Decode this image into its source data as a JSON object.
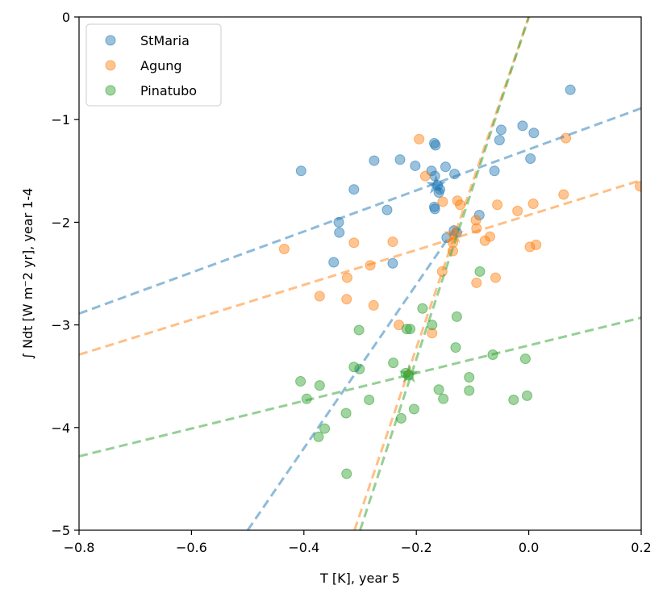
{
  "chart_data": {
    "type": "scatter",
    "xlabel": "T [K], year 5",
    "ylabel": "∫ Ndt [W m⁻2 yr], year 1-4",
    "xlim": [
      -0.8,
      0.2
    ],
    "ylim": [
      -5,
      0
    ],
    "xticks": [
      -0.8,
      -0.6,
      -0.4,
      -0.2,
      0.0,
      0.2
    ],
    "xtick_labels": [
      "−0.8",
      "−0.6",
      "−0.4",
      "−0.2",
      "0.0",
      "0.2"
    ],
    "yticks": [
      0,
      -1,
      -2,
      -3,
      -4,
      -5
    ],
    "ytick_labels": [
      "0",
      "−1",
      "−2",
      "−3",
      "−4",
      "−5"
    ],
    "grid": false,
    "legend_position": "top-left",
    "series": [
      {
        "name": "StMaria",
        "color": "#1f77b4",
        "points": [
          [
            0.074,
            -0.71
          ],
          [
            -0.405,
            -1.5
          ],
          [
            -0.311,
            -1.68
          ],
          [
            -0.275,
            -1.4
          ],
          [
            -0.229,
            -1.39
          ],
          [
            -0.202,
            -1.45
          ],
          [
            -0.148,
            -1.46
          ],
          [
            -0.173,
            -1.5
          ],
          [
            -0.168,
            -1.23
          ],
          [
            -0.166,
            -1.25
          ],
          [
            -0.167,
            -1.55
          ],
          [
            -0.162,
            -1.64
          ],
          [
            -0.158,
            -1.68
          ],
          [
            -0.16,
            -1.71
          ],
          [
            -0.132,
            -1.53
          ],
          [
            -0.168,
            -1.85
          ],
          [
            -0.167,
            -1.87
          ],
          [
            -0.088,
            -1.93
          ],
          [
            -0.011,
            -1.06
          ],
          [
            0.009,
            -1.13
          ],
          [
            -0.049,
            -1.1
          ],
          [
            -0.052,
            -1.2
          ],
          [
            0.003,
            -1.38
          ],
          [
            -0.061,
            -1.5
          ],
          [
            -0.252,
            -1.88
          ],
          [
            -0.338,
            -2.0
          ],
          [
            -0.337,
            -2.1
          ],
          [
            -0.347,
            -2.39
          ],
          [
            -0.242,
            -2.4
          ],
          [
            -0.146,
            -2.15
          ],
          [
            -0.133,
            -2.08
          ],
          [
            -0.128,
            -2.1
          ]
        ],
        "fit_line": {
          "x": [
            -0.8,
            0.2
          ],
          "y": [
            -2.89,
            -0.89
          ]
        },
        "steep_line": {
          "x": [
            -0.5,
            -0.134
          ],
          "y": [
            -5.0,
            -2.08
          ]
        },
        "mean_marker": [
          -0.165,
          -1.64
        ]
      },
      {
        "name": "Agung",
        "color": "#ff7f0e",
        "points": [
          [
            -0.195,
            -1.19
          ],
          [
            -0.184,
            -1.55
          ],
          [
            -0.153,
            -1.8
          ],
          [
            -0.127,
            -1.79
          ],
          [
            -0.122,
            -1.83
          ],
          [
            -0.094,
            -1.98
          ],
          [
            -0.093,
            -2.06
          ],
          [
            -0.078,
            -2.18
          ],
          [
            -0.069,
            -2.14
          ],
          [
            -0.056,
            -1.83
          ],
          [
            -0.02,
            -1.89
          ],
          [
            0.008,
            -1.82
          ],
          [
            0.013,
            -2.22
          ],
          [
            0.002,
            -2.24
          ],
          [
            0.066,
            -1.18
          ],
          [
            0.062,
            -1.73
          ],
          [
            0.198,
            -1.65
          ],
          [
            -0.435,
            -2.26
          ],
          [
            -0.311,
            -2.2
          ],
          [
            -0.242,
            -2.19
          ],
          [
            -0.282,
            -2.42
          ],
          [
            -0.323,
            -2.54
          ],
          [
            -0.372,
            -2.72
          ],
          [
            -0.324,
            -2.75
          ],
          [
            -0.276,
            -2.81
          ],
          [
            -0.154,
            -2.48
          ],
          [
            -0.135,
            -2.2
          ],
          [
            -0.135,
            -2.28
          ],
          [
            -0.093,
            -2.59
          ],
          [
            -0.059,
            -2.54
          ],
          [
            -0.231,
            -3.0
          ],
          [
            -0.172,
            -3.08
          ]
        ],
        "fit_line": {
          "x": [
            -0.8,
            0.2
          ],
          "y": [
            -3.29,
            -1.59
          ]
        },
        "steep_line": {
          "x": [
            -0.31,
            0.0
          ],
          "y": [
            -5.0,
            0.0
          ]
        },
        "mean_marker": [
          -0.133,
          -2.12
        ]
      },
      {
        "name": "Pinatubo",
        "color": "#2ca02c",
        "points": [
          [
            -0.087,
            -2.48
          ],
          [
            -0.189,
            -2.84
          ],
          [
            -0.128,
            -2.92
          ],
          [
            -0.217,
            -3.04
          ],
          [
            -0.211,
            -3.04
          ],
          [
            -0.172,
            -3.0
          ],
          [
            -0.302,
            -3.05
          ],
          [
            -0.13,
            -3.22
          ],
          [
            -0.064,
            -3.29
          ],
          [
            -0.006,
            -3.33
          ],
          [
            -0.311,
            -3.41
          ],
          [
            -0.301,
            -3.43
          ],
          [
            -0.241,
            -3.37
          ],
          [
            -0.406,
            -3.55
          ],
          [
            -0.372,
            -3.59
          ],
          [
            -0.395,
            -3.72
          ],
          [
            -0.284,
            -3.73
          ],
          [
            -0.219,
            -3.47
          ],
          [
            -0.214,
            -3.49
          ],
          [
            -0.16,
            -3.63
          ],
          [
            -0.152,
            -3.72
          ],
          [
            -0.106,
            -3.51
          ],
          [
            -0.106,
            -3.64
          ],
          [
            -0.027,
            -3.73
          ],
          [
            -0.003,
            -3.69
          ],
          [
            -0.325,
            -3.86
          ],
          [
            -0.227,
            -3.91
          ],
          [
            -0.204,
            -3.82
          ],
          [
            -0.363,
            -4.01
          ],
          [
            -0.374,
            -4.09
          ],
          [
            -0.324,
            -4.45
          ]
        ],
        "fit_line": {
          "x": [
            -0.8,
            0.2
          ],
          "y": [
            -4.28,
            -2.93
          ]
        },
        "steep_line": {
          "x": [
            -0.3,
            0.0
          ],
          "y": [
            -5.0,
            0.0
          ]
        },
        "mean_marker": [
          -0.213,
          -3.48
        ]
      }
    ]
  }
}
